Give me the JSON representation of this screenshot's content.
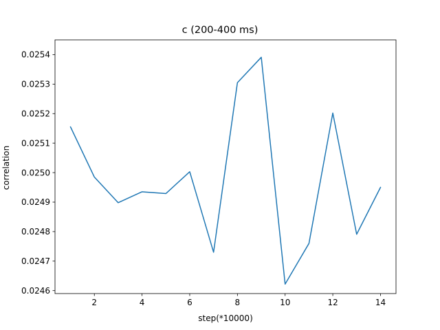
{
  "chart_data": {
    "type": "line",
    "title": "c (200-400 ms)",
    "xlabel": "step(*10000)",
    "ylabel": "correlation",
    "xlim": [
      0.35,
      14.65
    ],
    "ylim": [
      0.02459,
      0.02545
    ],
    "xticks": [
      2,
      4,
      6,
      8,
      10,
      12,
      14
    ],
    "yticks": [
      0.0246,
      0.0247,
      0.0248,
      0.0249,
      0.025,
      0.0251,
      0.0252,
      0.0253,
      0.0254
    ],
    "ytick_labels": [
      "0.0246",
      "0.0247",
      "0.0248",
      "0.0249",
      "0.0250",
      "0.0251",
      "0.0252",
      "0.0253",
      "0.0254"
    ],
    "grid": false,
    "series": [
      {
        "color": "#1f77b4",
        "x": [
          1,
          2,
          3,
          4,
          5,
          6,
          7,
          8,
          9,
          10,
          11,
          12,
          13,
          14
        ],
        "y": [
          0.025155,
          0.024985,
          0.024898,
          0.024935,
          0.024929,
          0.025003,
          0.02473,
          0.025305,
          0.025391,
          0.024622,
          0.02476,
          0.025202,
          0.024791,
          0.02495
        ]
      }
    ]
  }
}
